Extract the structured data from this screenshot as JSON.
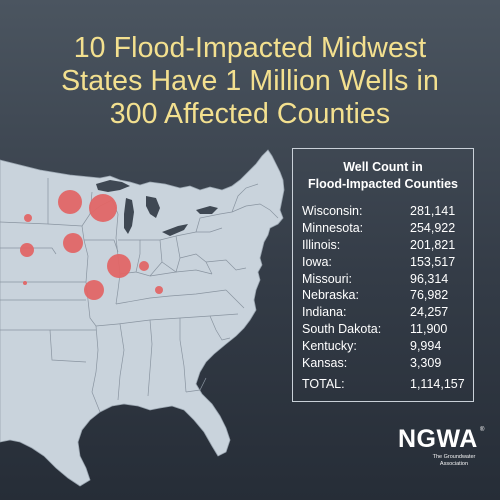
{
  "title_lines": [
    "10 Flood-Impacted Midwest",
    "States Have 1 Million Wells in",
    "300 Affected Counties"
  ],
  "colors": {
    "title": "#f3e08f",
    "map_fill": "#c9d3dc",
    "state_border": "#8994a0",
    "bubble": "#e16666"
  },
  "table": {
    "title_lines": [
      "Well Count in",
      "Flood-Impacted Counties"
    ],
    "rows": [
      {
        "state": "Wisconsin:",
        "count": "281,141"
      },
      {
        "state": "Minnesota:",
        "count": "254,922"
      },
      {
        "state": "Illinois:",
        "count": "201,821"
      },
      {
        "state": "Iowa:",
        "count": "153,517"
      },
      {
        "state": "Missouri:",
        "count": "96,314"
      },
      {
        "state": "Nebraska:",
        "count": "76,982"
      },
      {
        "state": "Indiana:",
        "count": "24,257"
      },
      {
        "state": "South Dakota:",
        "count": "11,900"
      },
      {
        "state": "Kentucky:",
        "count": "9,994"
      },
      {
        "state": "Kansas:",
        "count": "3,309"
      }
    ],
    "total_label": "TOTAL:",
    "total_value": "1,114,157"
  },
  "logo": {
    "text": "NGWA",
    "trademark": "®",
    "subtitle_lines": [
      "The Groundwater",
      "Association"
    ]
  }
}
